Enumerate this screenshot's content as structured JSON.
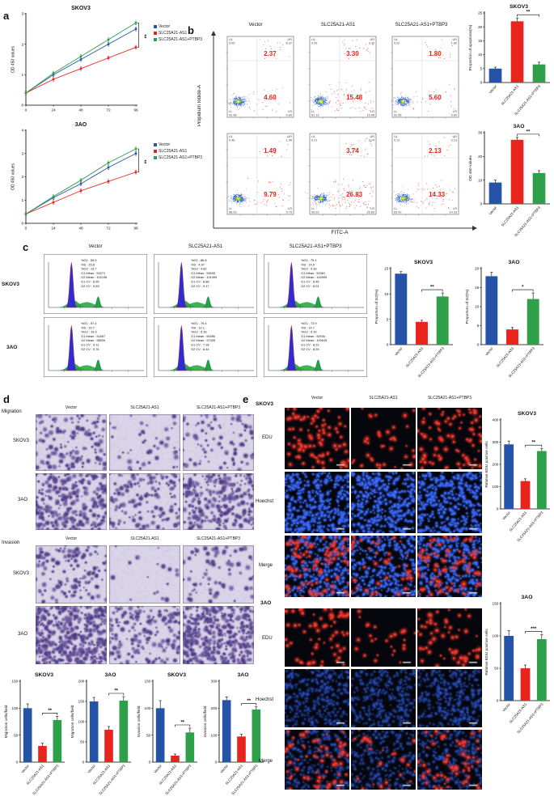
{
  "panels": {
    "a": "a",
    "b": "b",
    "c": "c",
    "d": "d",
    "e": "e"
  },
  "groups": {
    "names": [
      "Vector",
      "SLC25A21-AS1",
      "SLC25A21-AS1+PTBP3"
    ],
    "colors": [
      "#2553a8",
      "#e8241c",
      "#2fa04a"
    ]
  },
  "panel_b": {
    "ylabel": "Propidium Iodide-A",
    "xlabel": "FITC-A",
    "flow_plots": [
      {
        "id": "fb1",
        "cell_line": "SKOV3",
        "group": "Vector",
        "UL": "0.05",
        "UR": "2.37",
        "LL": "92.98",
        "LR": "4.60"
      },
      {
        "id": "fb2",
        "cell_line": "SKOV3",
        "group": "SLC25A21-AS1",
        "UL": "0.09",
        "UR": "3.30",
        "LL": "81.13",
        "LR": "15.48"
      },
      {
        "id": "fb3",
        "cell_line": "SKOV3",
        "group": "SLC25A21-AS1+PTBP3",
        "UL": "0.02",
        "UR": "1.80",
        "LL": "92.58",
        "LR": "5.60"
      },
      {
        "id": "fb4",
        "cell_line": "3AO",
        "group": "Vector",
        "UL": "0.46",
        "UR": "1.49",
        "LL": "88.26",
        "LR": "9.79"
      },
      {
        "id": "fb5",
        "cell_line": "3AO",
        "group": "SLC25A21-AS1",
        "UL": "0.21",
        "UR": "3.74",
        "LL": "69.22",
        "LR": "26.83"
      },
      {
        "id": "fb6",
        "cell_line": "3AO",
        "group": "SLC25A21-AS1+PTBP3",
        "UL": "0.12",
        "UR": "2.13",
        "LL": "83.42",
        "LR": "14.33"
      }
    ]
  },
  "panel_c": {
    "cell_lines": [
      "SKOV3",
      "3AO"
    ],
    "hists": [
      {
        "id": "hc1",
        "cell_line": "SKOV3",
        "group": "Vector",
        "stats": [
          "%G1 : 59.5",
          "%S : 25.8",
          "%G2 : 13.7",
          "G1 Mean : 53271",
          "G2 Mean : 102136",
          "G1 CV : 8.95",
          "G2 CV : 9.53"
        ]
      },
      {
        "id": "hc2",
        "cell_line": "SKOV3",
        "group": "SLC25A21-AS1",
        "stats": [
          "%G1 : 86.8",
          "%S : 4.97",
          "%G2 : 4.82",
          "G1 Mean : 53093",
          "G2 Mean : 101409",
          "G1 CV : 8.88",
          "G2 CV : 9.17"
        ]
      },
      {
        "id": "hc3",
        "cell_line": "SKOV3",
        "group": "SLC25A21-AS1+PTBP3",
        "stats": [
          "%G1 : 75.1",
          "%S : 14.9",
          "%G2 : 9.16",
          "G1 Mean : 52381",
          "G2 Mean : 100905",
          "G1 CV : 8.46",
          "G2 CV : 8.01"
        ]
      },
      {
        "id": "hc4",
        "cell_line": "3AO",
        "group": "Vector",
        "stats": [
          "%G1 : 57.4",
          "%S : 22.7",
          "%G2 : 19.3",
          "G1 Mean : 51807",
          "G2 Mean : 98526",
          "G1 CV : 9.11",
          "G2 CV : 9.76"
        ]
      },
      {
        "id": "hc5",
        "cell_line": "3AO",
        "group": "SLC25A21-AS1",
        "stats": [
          "%G1 : 79.4",
          "%S : 12.1",
          "%G2 : 5.18",
          "G1 Mean : 50390",
          "G2 Mean : 97425",
          "G1 CV : 7.28",
          "G2 CV : 6.44"
        ]
      },
      {
        "id": "hc6",
        "cell_line": "3AO",
        "group": "SLC25A21-AS1+PTBP3",
        "stats": [
          "%G1 : 73.9",
          "%S : 14.7",
          "%G2 : 9.10",
          "G1 Mean : 52034",
          "G2 Mean : 100815",
          "G1 CV : 8.22",
          "G2 CV : 8.29"
        ]
      }
    ]
  },
  "panel_d": {
    "assays": [
      "Migration",
      "Invasion"
    ],
    "cell_lines": [
      "SKOV3",
      "3AO"
    ],
    "images": [
      {
        "id": "dm_sk_v",
        "kind": "crystal",
        "density": 130
      },
      {
        "id": "dm_sk_a",
        "kind": "crystal",
        "density": 45
      },
      {
        "id": "dm_sk_p",
        "kind": "crystal",
        "density": 90
      },
      {
        "id": "dm_ao_v",
        "kind": "crystal",
        "density": 260
      },
      {
        "id": "dm_ao_a",
        "kind": "crystal",
        "density": 140
      },
      {
        "id": "dm_ao_p",
        "kind": "crystal",
        "density": 250
      },
      {
        "id": "di_sk_v",
        "kind": "crystal",
        "density": 140
      },
      {
        "id": "di_sk_a",
        "kind": "crystal",
        "density": 18
      },
      {
        "id": "di_sk_p",
        "kind": "crystal",
        "density": 70
      },
      {
        "id": "di_ao_v",
        "kind": "crystal",
        "density": 420
      },
      {
        "id": "di_ao_a",
        "kind": "crystal",
        "density": 160
      },
      {
        "id": "di_ao_p",
        "kind": "crystal",
        "density": 380
      }
    ]
  },
  "panel_e": {
    "cell_lines": [
      "SKOV3",
      "3AO"
    ],
    "channels": [
      "EDU",
      "Hoechst",
      "Merge"
    ],
    "images": [
      {
        "id": "e_sk_edu_v",
        "kind": "edu",
        "red": 95
      },
      {
        "id": "e_sk_edu_a",
        "kind": "edu",
        "red": 38
      },
      {
        "id": "e_sk_edu_p",
        "kind": "edu",
        "red": 85
      },
      {
        "id": "e_sk_ho_v",
        "kind": "hoechst",
        "blue": 380
      },
      {
        "id": "e_sk_ho_a",
        "kind": "hoechst",
        "blue": 360
      },
      {
        "id": "e_sk_ho_p",
        "kind": "hoechst",
        "blue": 380
      },
      {
        "id": "e_sk_mg_v",
        "kind": "merge",
        "blue": 320,
        "red": 95
      },
      {
        "id": "e_sk_mg_a",
        "kind": "merge",
        "blue": 300,
        "red": 38
      },
      {
        "id": "e_sk_mg_p",
        "kind": "merge",
        "blue": 320,
        "red": 85
      },
      {
        "id": "e_ao_edu_v",
        "kind": "edu",
        "red": 65
      },
      {
        "id": "e_ao_edu_a",
        "kind": "edu",
        "red": 26
      },
      {
        "id": "e_ao_edu_p",
        "kind": "edu",
        "red": 58
      },
      {
        "id": "e_ao_ho_v",
        "kind": "hoechst",
        "blue": 300,
        "dim": true
      },
      {
        "id": "e_ao_ho_a",
        "kind": "hoechst",
        "blue": 280,
        "dim": true
      },
      {
        "id": "e_ao_ho_p",
        "kind": "hoechst",
        "blue": 300,
        "dim": true
      },
      {
        "id": "e_ao_mg_v",
        "kind": "merge",
        "blue": 260,
        "red": 65,
        "dim": true
      },
      {
        "id": "e_ao_mg_a",
        "kind": "merge",
        "blue": 240,
        "red": 26,
        "dim": true
      },
      {
        "id": "e_ao_mg_p",
        "kind": "merge",
        "blue": 260,
        "red": 58,
        "dim": true
      }
    ]
  },
  "chart_data": [
    {
      "id": "a_skov3",
      "type": "line",
      "title": "SKOV3",
      "ylabel": "OD 450 values",
      "x": [
        0,
        24,
        48,
        72,
        96
      ],
      "ylim": [
        0,
        3
      ],
      "yticks": [
        0,
        1,
        2,
        3
      ],
      "sig": "**",
      "series": [
        {
          "name": "Vector",
          "values": [
            0.4,
            1.0,
            1.5,
            2.0,
            2.5
          ]
        },
        {
          "name": "SLC25A21-AS1",
          "values": [
            0.4,
            0.85,
            1.2,
            1.55,
            1.9
          ]
        },
        {
          "name": "SLC25A21-AS1+PTBP3",
          "values": [
            0.4,
            1.05,
            1.6,
            2.15,
            2.7
          ]
        }
      ]
    },
    {
      "id": "a_3ao",
      "type": "line",
      "title": "3AO",
      "ylabel": "OD 450 values",
      "x": [
        0,
        24,
        48,
        72,
        96
      ],
      "ylim": [
        0,
        4
      ],
      "yticks": [
        0,
        1,
        2,
        3,
        4
      ],
      "sig": "**",
      "series": [
        {
          "name": "Vector",
          "values": [
            0.4,
            1.1,
            1.7,
            2.4,
            3.0
          ]
        },
        {
          "name": "SLC25A21-AS1",
          "values": [
            0.4,
            0.9,
            1.4,
            1.8,
            2.2
          ]
        },
        {
          "name": "SLC25A21-AS1+PTBP3",
          "values": [
            0.4,
            1.15,
            1.85,
            2.6,
            3.2
          ]
        }
      ]
    },
    {
      "id": "b_apo_skov3",
      "type": "bar",
      "title": "SKOV3",
      "ylabel": "Proportion of apoptosis(%)",
      "categories": [
        "Vector",
        "SLC25A21-AS1",
        "SLC25A21-AS1+PTBP3"
      ],
      "values": [
        5,
        22,
        6.5
      ],
      "errors": [
        0.5,
        1.2,
        0.8
      ],
      "ylim": [
        0,
        25
      ],
      "yticks": [
        0,
        5,
        10,
        15,
        20,
        25
      ],
      "sig": "**",
      "sig_from": 1,
      "sig_to": 2
    },
    {
      "id": "b_apo_3ao",
      "type": "bar",
      "title": "3AO",
      "ylabel": "OD 450 values",
      "categories": [
        "Vector",
        "SLC25A21-AS1",
        "SLC25A21-AS1+PTBP3"
      ],
      "values": [
        9,
        27,
        13
      ],
      "errors": [
        1,
        1,
        1
      ],
      "ylim": [
        0,
        30
      ],
      "yticks": [
        0,
        10,
        20,
        30
      ],
      "sig": "**",
      "sig_from": 1,
      "sig_to": 2
    },
    {
      "id": "c_g2_skov3",
      "type": "bar",
      "title": "SKOV3",
      "ylabel": "Proportion of G2(%)",
      "categories": [
        "Vector",
        "SLC25A21-AS1",
        "SLC25A21-AS1+PTBP3"
      ],
      "values": [
        14,
        4.5,
        9.5
      ],
      "errors": [
        0.4,
        0.3,
        0.7
      ],
      "ylim": [
        0,
        15
      ],
      "yticks": [
        0,
        5,
        10,
        15
      ],
      "sig": "**",
      "sig_from": 1,
      "sig_to": 2
    },
    {
      "id": "c_g2_3ao",
      "type": "bar",
      "title": "3AO",
      "ylabel": "Proportion of G2(%)",
      "categories": [
        "Vector",
        "SLC25A21-AS1",
        "SLC25A21-AS1+PTBP3"
      ],
      "values": [
        18,
        4,
        12
      ],
      "errors": [
        1,
        0.5,
        1.6
      ],
      "ylim": [
        0,
        20
      ],
      "yticks": [
        0,
        5,
        10,
        15,
        20
      ],
      "sig": "*",
      "sig_from": 1,
      "sig_to": 2
    },
    {
      "id": "d_mig_skov3",
      "type": "bar",
      "title": "SKOV3",
      "ylabel": "Migration cells/field",
      "categories": [
        "Vector",
        "SLC25A21-AS1",
        "SLC25A21-AS1+PTBP3"
      ],
      "values": [
        100,
        30,
        78
      ],
      "errors": [
        8,
        5,
        7
      ],
      "ylim": [
        0,
        150
      ],
      "yticks": [
        0,
        50,
        100,
        150
      ],
      "sig": "**",
      "sig_from": 1,
      "sig_to": 2
    },
    {
      "id": "d_mig_3ao",
      "type": "bar",
      "title": "3AO",
      "ylabel": "Migration cells/field",
      "categories": [
        "Vector",
        "SLC25A21-AS1",
        "SLC25A21-AS1+PTBP3"
      ],
      "values": [
        150,
        80,
        152
      ],
      "errors": [
        10,
        8,
        10
      ],
      "ylim": [
        0,
        200
      ],
      "yticks": [
        0,
        50,
        100,
        150,
        200
      ],
      "sig": "**",
      "sig_from": 1,
      "sig_to": 2
    },
    {
      "id": "d_inv_skov3",
      "type": "bar",
      "title": "SKOV3",
      "ylabel": "Invasion cells/field",
      "categories": [
        "Vector",
        "SLC25A21-AS1",
        "SLC25A21-AS1+PTBP3"
      ],
      "values": [
        100,
        12,
        55
      ],
      "errors": [
        14,
        3,
        8
      ],
      "ylim": [
        0,
        150
      ],
      "yticks": [
        0,
        50,
        100,
        150
      ],
      "sig": "**",
      "sig_from": 1,
      "sig_to": 2
    },
    {
      "id": "d_inv_3ao",
      "type": "bar",
      "title": "3AO",
      "ylabel": "Invasion cells/field",
      "categories": [
        "Vector",
        "SLC25A21-AS1",
        "SLC25A21-AS1+PTBP3"
      ],
      "values": [
        230,
        95,
        195
      ],
      "errors": [
        12,
        8,
        10
      ],
      "ylim": [
        0,
        300
      ],
      "yticks": [
        0,
        100,
        200,
        300
      ],
      "sig": "**",
      "sig_from": 1,
      "sig_to": 2
    },
    {
      "id": "e_edu_skov3",
      "type": "bar",
      "title": "SKOV3",
      "ylabel": "Relative EDU positive cells",
      "categories": [
        "Vector",
        "SLC25A21-AS1",
        "SLC25A21-AS1+PTBP3"
      ],
      "values": [
        290,
        125,
        260
      ],
      "errors": [
        15,
        10,
        12
      ],
      "ylim": [
        0,
        400
      ],
      "yticks": [
        0,
        100,
        200,
        300,
        400
      ],
      "sig": "**",
      "sig_from": 1,
      "sig_to": 2
    },
    {
      "id": "e_edu_3ao",
      "type": "bar",
      "title": "3AO",
      "ylabel": "Relative EDU positive cells",
      "categories": [
        "Vector",
        "SLC25A21-AS1",
        "SLC25A21-AS1+PTBP3"
      ],
      "values": [
        100,
        50,
        95
      ],
      "errors": [
        8,
        5,
        7
      ],
      "ylim": [
        0,
        150
      ],
      "yticks": [
        0,
        50,
        100,
        150
      ],
      "sig": "***",
      "sig_from": 1,
      "sig_to": 2
    }
  ]
}
